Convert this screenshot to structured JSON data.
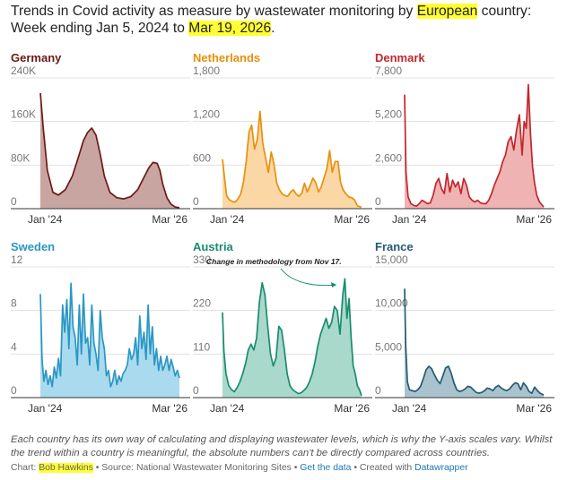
{
  "title": {
    "part1": "Trends in Covid activity as measure by wastewater monitoring by ",
    "highlight1": "European",
    "part2": " country: Week ending Jan 5, 2024 to ",
    "highlight2": "Mar 19, 2026",
    "part3": "."
  },
  "footnote": "Each country has its own way of calculating and displaying wastewater levels, which is why the Y-axis scales vary. Whilst the trend within a country is meaningful, the absolute numbers can't be directly compared across countries.",
  "credits": {
    "chart_label": "Chart: ",
    "author": "Bob Hawkins",
    "sep1": " • Source: ",
    "source": "National Wastewater Monitoring Sites",
    "sep2": " • ",
    "get_data": "Get the data",
    "sep3": " • Created with ",
    "tool": "Datawrapper"
  },
  "chart_data": [
    {
      "type": "area",
      "country": "Germany",
      "color": "#6b1a16",
      "fill": "#c9a5a2",
      "ylim": [
        0,
        240000
      ],
      "yticks": [
        "240K",
        "160K",
        "80K",
        "0"
      ],
      "ytick_values": [
        240000,
        160000,
        80000,
        0
      ],
      "x_labels": [
        "Jan '24",
        "Mar '26"
      ],
      "x_range": [
        "2024-01-05",
        "2026-03-19"
      ],
      "x": [
        0,
        0.02,
        0.05,
        0.09,
        0.13,
        0.18,
        0.23,
        0.28,
        0.31,
        0.34,
        0.37,
        0.4,
        0.43,
        0.46,
        0.5,
        0.55,
        0.6,
        0.65,
        0.7,
        0.74,
        0.78,
        0.81,
        0.84,
        0.86,
        0.88,
        0.91,
        0.94,
        0.97,
        1.0
      ],
      "values": [
        212000,
        150000,
        70000,
        30000,
        25000,
        35000,
        60000,
        100000,
        125000,
        140000,
        148000,
        135000,
        100000,
        60000,
        30000,
        20000,
        18000,
        22000,
        35000,
        55000,
        75000,
        85000,
        83000,
        70000,
        45000,
        20000,
        8000,
        3000,
        2000
      ]
    },
    {
      "type": "area",
      "country": "Netherlands",
      "color": "#e8900a",
      "fill": "#fbd7a6",
      "ylim": [
        0,
        1800
      ],
      "yticks": [
        "1,800",
        "1,200",
        "600",
        "0"
      ],
      "ytick_values": [
        1800,
        1200,
        600,
        0
      ],
      "x_labels": [
        "Jan '24",
        "Mar '26"
      ],
      "x_range": [
        "2024-01-05",
        "2026-03-19"
      ],
      "x": [
        0,
        0.015,
        0.03,
        0.05,
        0.07,
        0.09,
        0.11,
        0.13,
        0.15,
        0.17,
        0.19,
        0.21,
        0.23,
        0.25,
        0.27,
        0.29,
        0.31,
        0.33,
        0.35,
        0.37,
        0.39,
        0.41,
        0.43,
        0.45,
        0.47,
        0.49,
        0.51,
        0.53,
        0.55,
        0.57,
        0.59,
        0.61,
        0.63,
        0.65,
        0.67,
        0.69,
        0.71,
        0.73,
        0.75,
        0.77,
        0.79,
        0.81,
        0.83,
        0.85,
        0.87,
        0.89,
        0.91,
        0.93,
        0.95,
        0.97,
        1.0
      ],
      "values": [
        680,
        420,
        180,
        120,
        100,
        90,
        130,
        200,
        360,
        650,
        1050,
        1150,
        820,
        950,
        1340,
        900,
        700,
        500,
        780,
        620,
        350,
        260,
        200,
        180,
        170,
        230,
        260,
        200,
        170,
        210,
        350,
        230,
        320,
        420,
        360,
        230,
        300,
        420,
        550,
        800,
        500,
        650,
        650,
        350,
        250,
        200,
        160,
        150,
        120,
        40,
        20
      ]
    },
    {
      "type": "area",
      "country": "Denmark",
      "color": "#c1272d",
      "fill": "#eeb3b2",
      "ylim": [
        0,
        7800
      ],
      "yticks": [
        "7,800",
        "5,200",
        "2,600",
        "0"
      ],
      "ytick_values": [
        7800,
        5200,
        2600,
        0
      ],
      "x_labels": [
        "Jan '24",
        "Mar '26"
      ],
      "x_range": [
        "2024-01-05",
        "2026-03-19"
      ],
      "x": [
        0,
        0.01,
        0.025,
        0.045,
        0.065,
        0.085,
        0.105,
        0.125,
        0.145,
        0.165,
        0.185,
        0.205,
        0.225,
        0.245,
        0.265,
        0.285,
        0.305,
        0.325,
        0.345,
        0.365,
        0.385,
        0.405,
        0.425,
        0.445,
        0.465,
        0.485,
        0.505,
        0.525,
        0.545,
        0.565,
        0.585,
        0.605,
        0.625,
        0.645,
        0.665,
        0.685,
        0.705,
        0.725,
        0.745,
        0.765,
        0.785,
        0.805,
        0.825,
        0.845,
        0.86,
        0.875,
        0.89,
        0.905,
        0.92,
        0.935,
        0.95,
        0.97,
        1.0
      ],
      "values": [
        6800,
        2200,
        700,
        300,
        200,
        150,
        300,
        500,
        400,
        300,
        350,
        800,
        1500,
        1800,
        1200,
        900,
        2100,
        1000,
        1700,
        1300,
        1600,
        900,
        1800,
        1400,
        700,
        500,
        400,
        500,
        350,
        300,
        300,
        500,
        900,
        1400,
        1800,
        2200,
        2800,
        3200,
        4000,
        4300,
        3500,
        4700,
        5600,
        3200,
        5200,
        4800,
        7400,
        4500,
        2500,
        1500,
        800,
        400,
        100
      ]
    },
    {
      "type": "area",
      "country": "Sweden",
      "color": "#2a97c4",
      "fill": "#aadaee",
      "ylim": [
        0,
        12
      ],
      "yticks": [
        "12",
        "8",
        "4",
        "0"
      ],
      "ytick_values": [
        12,
        8,
        4,
        0
      ],
      "x_labels": [
        "Jan '24",
        "Mar '26"
      ],
      "x_range": [
        "2024-01-05",
        "2026-03-19"
      ],
      "x": [
        0,
        0.012,
        0.025,
        0.04,
        0.055,
        0.07,
        0.085,
        0.1,
        0.115,
        0.13,
        0.145,
        0.16,
        0.175,
        0.19,
        0.205,
        0.22,
        0.235,
        0.25,
        0.265,
        0.28,
        0.295,
        0.31,
        0.325,
        0.34,
        0.355,
        0.37,
        0.385,
        0.4,
        0.415,
        0.43,
        0.445,
        0.46,
        0.475,
        0.49,
        0.505,
        0.52,
        0.535,
        0.55,
        0.565,
        0.58,
        0.595,
        0.61,
        0.625,
        0.64,
        0.655,
        0.67,
        0.685,
        0.7,
        0.715,
        0.73,
        0.745,
        0.76,
        0.775,
        0.79,
        0.805,
        0.82,
        0.835,
        0.85,
        0.865,
        0.88,
        0.895,
        0.91,
        0.925,
        0.94,
        0.955,
        0.97,
        0.985,
        1.0
      ],
      "values": [
        9.5,
        3.5,
        1.5,
        2.5,
        1.2,
        2.0,
        1.0,
        2.8,
        1.8,
        3.6,
        2.0,
        8.5,
        6.0,
        9.0,
        4.5,
        10.5,
        6.5,
        5.5,
        3.0,
        8.5,
        4.0,
        9.5,
        5.0,
        5.5,
        3.0,
        8.5,
        5.0,
        4.0,
        2.5,
        8.0,
        5.5,
        4.5,
        2.0,
        2.5,
        1.0,
        1.5,
        2.5,
        1.2,
        2.0,
        1.5,
        2.2,
        2.5,
        3.0,
        4.5,
        3.5,
        4.0,
        5.5,
        3.0,
        7.5,
        4.5,
        6.0,
        3.5,
        8.5,
        4.0,
        6.5,
        3.0,
        4.5,
        2.5,
        3.8,
        2.5,
        3.0,
        3.8,
        2.5,
        3.5,
        2.8,
        2.0,
        2.5,
        1.8
      ]
    },
    {
      "type": "area",
      "country": "Austria",
      "color": "#1a8c6f",
      "fill": "#a9d9cb",
      "ylim": [
        0,
        330
      ],
      "yticks": [
        "330",
        "220",
        "110",
        "0"
      ],
      "ytick_values": [
        330,
        220,
        110,
        0
      ],
      "x_labels": [
        "Jan '24",
        "Mar '26"
      ],
      "x_range": [
        "2024-01-05",
        "2026-03-19"
      ],
      "annotation": "Change in methodology from Nov 17.",
      "x": [
        0,
        0.01,
        0.025,
        0.045,
        0.065,
        0.085,
        0.105,
        0.125,
        0.145,
        0.165,
        0.185,
        0.205,
        0.225,
        0.245,
        0.265,
        0.285,
        0.305,
        0.325,
        0.345,
        0.365,
        0.385,
        0.405,
        0.425,
        0.445,
        0.465,
        0.485,
        0.505,
        0.525,
        0.545,
        0.565,
        0.585,
        0.605,
        0.625,
        0.645,
        0.665,
        0.685,
        0.705,
        0.725,
        0.745,
        0.765,
        0.785,
        0.805,
        0.825,
        0.845,
        0.865,
        0.88,
        0.895,
        0.91,
        0.925,
        0.94,
        0.955,
        0.97,
        0.985,
        1.0
      ],
      "values": [
        215,
        120,
        60,
        30,
        20,
        15,
        25,
        40,
        60,
        85,
        120,
        135,
        120,
        150,
        240,
        290,
        260,
        180,
        110,
        80,
        100,
        180,
        170,
        120,
        60,
        30,
        20,
        15,
        10,
        12,
        18,
        25,
        40,
        60,
        90,
        130,
        160,
        180,
        200,
        175,
        190,
        230,
        220,
        160,
        260,
        300,
        200,
        250,
        150,
        80,
        60,
        30,
        20,
        5
      ]
    },
    {
      "type": "area",
      "country": "France",
      "color": "#245a73",
      "fill": "#a9c3ce",
      "ylim": [
        0,
        15000
      ],
      "yticks": [
        "15,000",
        "10,000",
        "5,000",
        "0"
      ],
      "ytick_values": [
        15000,
        10000,
        5000,
        0
      ],
      "x_labels": [
        "Jan '24",
        "Mar '26"
      ],
      "x_range": [
        "2024-01-05",
        "2026-03-19"
      ],
      "x": [
        0,
        0.008,
        0.02,
        0.035,
        0.055,
        0.075,
        0.095,
        0.115,
        0.135,
        0.155,
        0.175,
        0.195,
        0.215,
        0.235,
        0.255,
        0.275,
        0.295,
        0.315,
        0.335,
        0.355,
        0.375,
        0.395,
        0.415,
        0.435,
        0.455,
        0.475,
        0.495,
        0.515,
        0.535,
        0.555,
        0.575,
        0.595,
        0.615,
        0.635,
        0.655,
        0.675,
        0.695,
        0.715,
        0.735,
        0.755,
        0.775,
        0.795,
        0.815,
        0.835,
        0.855,
        0.875,
        0.895,
        0.915,
        0.935,
        0.955,
        0.975,
        1.0
      ],
      "values": [
        12500,
        6000,
        1800,
        900,
        800,
        700,
        900,
        1300,
        2200,
        3200,
        3600,
        3300,
        2600,
        2000,
        1600,
        2500,
        3400,
        3600,
        2800,
        1700,
        900,
        700,
        800,
        1000,
        1300,
        1200,
        900,
        600,
        500,
        600,
        800,
        1100,
        1000,
        800,
        1200,
        1400,
        1100,
        900,
        800,
        1000,
        1400,
        1700,
        1600,
        900,
        1700,
        1300,
        700,
        500,
        1200,
        800,
        500,
        300
      ]
    }
  ]
}
